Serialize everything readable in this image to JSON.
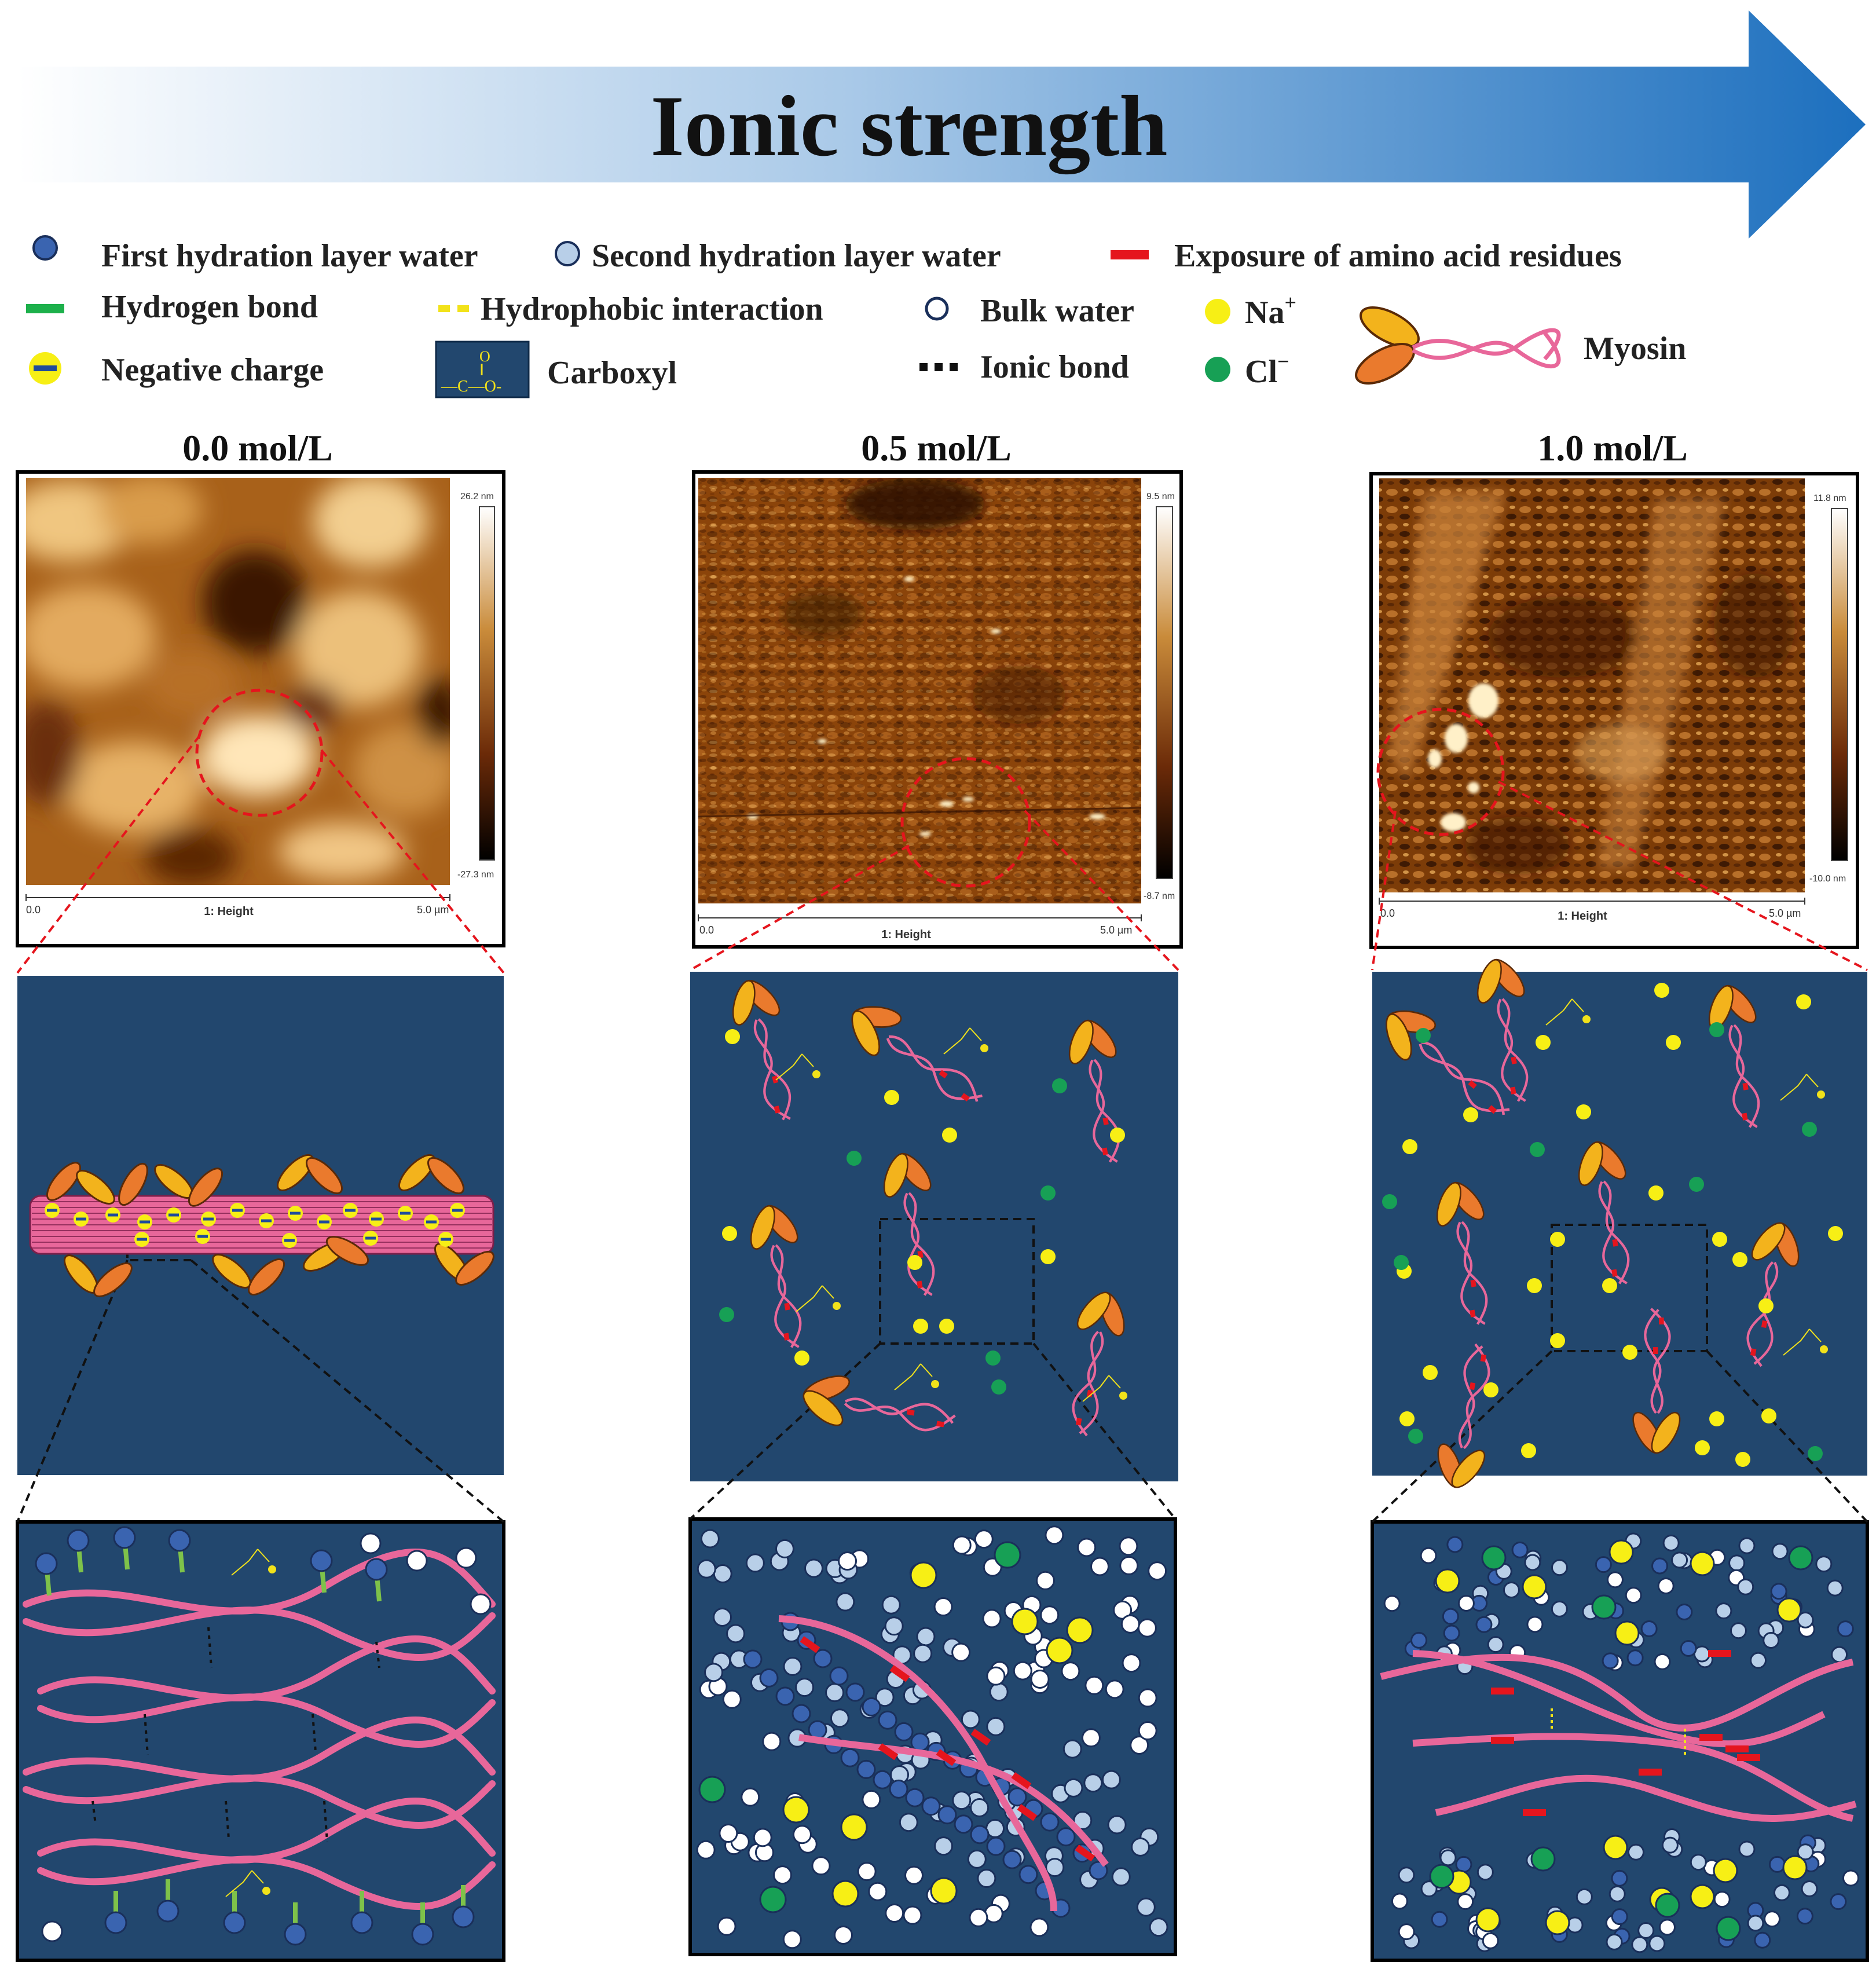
{
  "header": {
    "title": "Ionic strength",
    "colors": {
      "arrow_light": "#ffffff",
      "arrow_dark": "#1c6fbe"
    }
  },
  "legend": {
    "first_hydration": "First hydration layer water",
    "second_hydration": "Second hydration layer water",
    "exposure": "Exposure of amino acid residues",
    "hydrogen_bond": "Hydrogen bond",
    "hydrophobic": "Hydrophobic interaction",
    "bulk_water": "Bulk water",
    "na": "Na",
    "na_sup": "+",
    "negative_charge": "Negative charge",
    "carboxyl": "Carboxyl",
    "ionic_bond": "Ionic bond",
    "cl": "Cl",
    "cl_sup": "−",
    "myosin": "Myosin",
    "carboxyl_icon_top": "O",
    "carboxyl_icon_bottom": "—C—O-"
  },
  "panels": [
    {
      "concentration": "0.0 mol/L",
      "scale_max": "26.2 nm",
      "scale_min": "-27.3 nm",
      "axis_start": "0.0",
      "axis_label": "1: Height",
      "axis_end": "5.0 µm"
    },
    {
      "concentration": "0.5 mol/L",
      "scale_max": "9.5 nm",
      "scale_min": "-8.7 nm",
      "axis_start": "0.0",
      "axis_label": "1: Height",
      "axis_end": "5.0 µm"
    },
    {
      "concentration": "1.0 mol/L",
      "scale_max": "11.8 nm",
      "scale_min": "-10.0 nm",
      "axis_start": "0.0",
      "axis_label": "1: Height",
      "axis_end": "5.0 µm"
    }
  ],
  "colors": {
    "panel_bg": "#22476e",
    "myosin_strand": "#e8679a",
    "head_orange": "#ea7a2d",
    "head_yellow": "#f3b31c",
    "first_layer": "#3a64b0",
    "second_layer": "#b8cfe8",
    "bulk": "#ffffff",
    "na": "#f7ef15",
    "cl": "#17a055",
    "exposure": "#e5151d",
    "hbond": "#7ec24a"
  }
}
